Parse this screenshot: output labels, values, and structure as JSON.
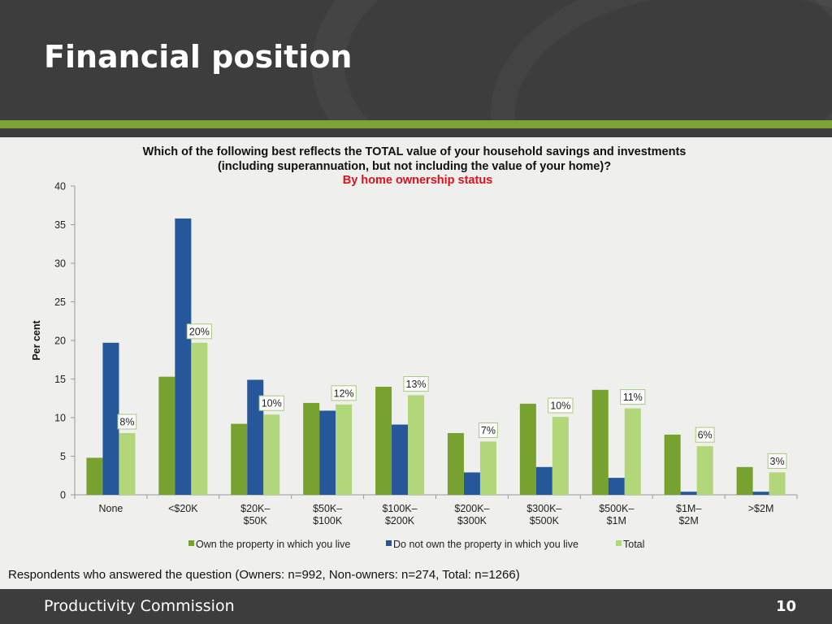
{
  "slide": {
    "title": "Financial position",
    "note": "Respondents who answered the question (Owners: n=992, Non-owners: n=274, Total: n=1266)",
    "footer": {
      "organization": "Productivity Commission",
      "page_number": "10"
    }
  },
  "colors": {
    "header_bg": "#3d3d3d",
    "accent_green": "#7ea233",
    "owners": "#78a22f",
    "non_owners": "#26579a",
    "total": "#b2d67a",
    "subtitle": "#e0101a"
  },
  "chart_data": {
    "type": "bar",
    "title_lines": [
      "Which of the following best reflects the TOTAL value of your household savings and investments",
      "(including superannuation, but not including the value of your home)?"
    ],
    "subtitle": "By home ownership status",
    "ylabel": "Per cent",
    "xlabel": "",
    "ylim": [
      0,
      40
    ],
    "yticks": [
      0,
      5,
      10,
      15,
      20,
      25,
      30,
      35,
      40
    ],
    "grid": false,
    "legend_position": "bottom",
    "categories": [
      [
        "None"
      ],
      [
        "<$20K"
      ],
      [
        "$20K–",
        "$50K"
      ],
      [
        "$50K–",
        "$100K"
      ],
      [
        "$100K–",
        "$200K"
      ],
      [
        "$200K–",
        "$300K"
      ],
      [
        "$300K–",
        "$500K"
      ],
      [
        "$500K–",
        "$1M"
      ],
      [
        "$1M–",
        "$2M"
      ],
      [
        ">$2M"
      ]
    ],
    "series": [
      {
        "name": "Own the property in which you live",
        "color": "#78a22f",
        "values": [
          4.8,
          15.3,
          9.2,
          11.9,
          14.0,
          8.0,
          11.8,
          13.6,
          7.8,
          3.6
        ]
      },
      {
        "name": "Do not own the property in which you live",
        "color": "#26579a",
        "values": [
          19.7,
          35.8,
          14.9,
          10.9,
          9.1,
          2.9,
          3.6,
          2.2,
          0.4,
          0.4
        ]
      },
      {
        "name": "Total",
        "color": "#b2d67a",
        "values": [
          8.0,
          19.7,
          10.4,
          11.7,
          12.9,
          6.9,
          10.1,
          11.2,
          6.3,
          2.9
        ],
        "data_labels": [
          "8%",
          "20%",
          "10%",
          "12%",
          "13%",
          "7%",
          "10%",
          "11%",
          "6%",
          "3%"
        ]
      }
    ]
  }
}
